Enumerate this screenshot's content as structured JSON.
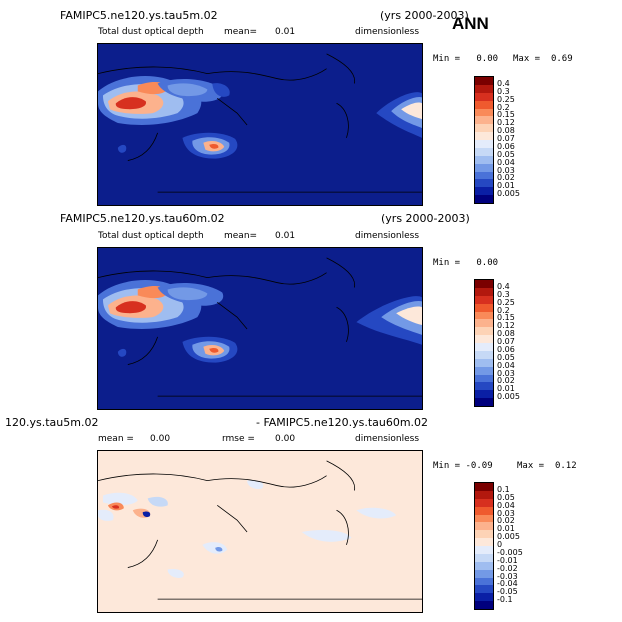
{
  "header": {
    "ann_label": "ANN"
  },
  "panels": [
    {
      "case_title": "FAMIPC5.ne120.ys.tau5m.02",
      "years": "(yrs 2000-2003)",
      "variable": "Total dust optical depth",
      "mean_label": "mean=",
      "mean_value": "0.01",
      "units": "dimensionless",
      "min_label": "Min =",
      "min_value": "0.00",
      "max_label": "Max =",
      "max_value": "0.69",
      "levels": [
        "0.4",
        "0.3",
        "0.25",
        "0.2",
        "0.15",
        "0.12",
        "0.08",
        "0.07",
        "0.06",
        "0.05",
        "0.04",
        "0.03",
        "0.02",
        "0.01",
        "0.005"
      ]
    },
    {
      "case_title": "FAMIPC5.ne120.ys.tau60m.02",
      "years": "(yrs 2000-2003)",
      "variable": "Total dust optical depth",
      "mean_label": "mean=",
      "mean_value": "0.01",
      "units": "dimensionless",
      "min_label": "Min =",
      "min_value": "0.00",
      "levels": [
        "0.4",
        "0.3",
        "0.25",
        "0.2",
        "0.15",
        "0.12",
        "0.08",
        "0.07",
        "0.06",
        "0.05",
        "0.04",
        "0.03",
        "0.02",
        "0.01",
        "0.005"
      ]
    },
    {
      "case_title": "120.ys.tau5m.02",
      "case_title_b": "- FAMIPC5.ne120.ys.tau60m.02",
      "mean_label": "mean =",
      "mean_value": "0.00",
      "rmse_label": "rmse =",
      "rmse_value": "0.00",
      "units": "dimensionless",
      "min_label": "Min =",
      "min_value": "-0.09",
      "max_label": "Max =",
      "max_value": "0.12",
      "levels": [
        "0.1",
        "0.05",
        "0.04",
        "0.03",
        "0.02",
        "0.01",
        "0.005",
        "0",
        "-0.005",
        "-0.01",
        "-0.02",
        "-0.03",
        "-0.04",
        "-0.05",
        "-0.1"
      ]
    }
  ],
  "colors": {
    "field_scale": [
      "#7a0000",
      "#b2180e",
      "#d7301f",
      "#ef5a2e",
      "#f98a59",
      "#fcb28d",
      "#fdd3b6",
      "#fde8da",
      "#e4ecfb",
      "#c6d9f6",
      "#9fbdf0",
      "#7399e6",
      "#4a72d8",
      "#2548c2",
      "#0a1fa5",
      "#00007d"
    ],
    "diff_scale": [
      "#7a0000",
      "#b2180e",
      "#d7301f",
      "#ef5a2e",
      "#f98a59",
      "#fcb28d",
      "#fdd3b6",
      "#fde8da",
      "#e4ecfb",
      "#c6d9f6",
      "#9fbdf0",
      "#7399e6",
      "#4a72d8",
      "#2548c2",
      "#0a1fa5",
      "#00007d"
    ],
    "ocean_bg": "#0c1e8c",
    "diff_bg": "#fde8da"
  }
}
